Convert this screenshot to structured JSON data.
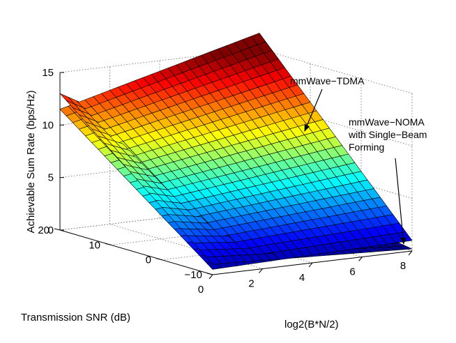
{
  "chart_data": {
    "type": "surface3d",
    "title": "",
    "xlabel": "log2(B*N/2)",
    "ylabel": "Transmission SNR (dB)",
    "zlabel": "Achievable Sum Rate (bps/Hz)",
    "xlim": [
      0,
      8
    ],
    "ylim": [
      -10,
      20
    ],
    "zlim": [
      0,
      15
    ],
    "x_ticks": [
      "0",
      "2",
      "4",
      "6",
      "8"
    ],
    "y_ticks": [
      "−10",
      "0",
      "10",
      "20"
    ],
    "z_ticks": [
      "0",
      "5",
      "10",
      "15"
    ],
    "grid": true,
    "colormap": "jet",
    "series": [
      {
        "name": "mmWave−TDMA",
        "description": "rate grows with SNR and with log2(B*N/2)",
        "corners": {
          "x0_ymin": 0.5,
          "x8_ymin": 1.0,
          "x0_ymax": 11.5,
          "x8_ymax": 16.5
        }
      },
      {
        "name": "mmWave−NOMA with Single−Beam Forming",
        "description": "rate grows with SNR and decreases with log2(B*N/2)",
        "corners": {
          "x0_ymin": 1.0,
          "x8_ymin": 0.2,
          "x0_ymax": 13.0,
          "x8_ymax": 2.5
        }
      }
    ],
    "annotations": [
      {
        "lines": [
          "mmWave−TDMA"
        ],
        "target": "mmWave−TDMA"
      },
      {
        "lines": [
          "mmWave−NOMA",
          "with Single−Beam",
          "Forming"
        ],
        "target": "mmWave−NOMA with Single−Beam Forming"
      }
    ]
  }
}
